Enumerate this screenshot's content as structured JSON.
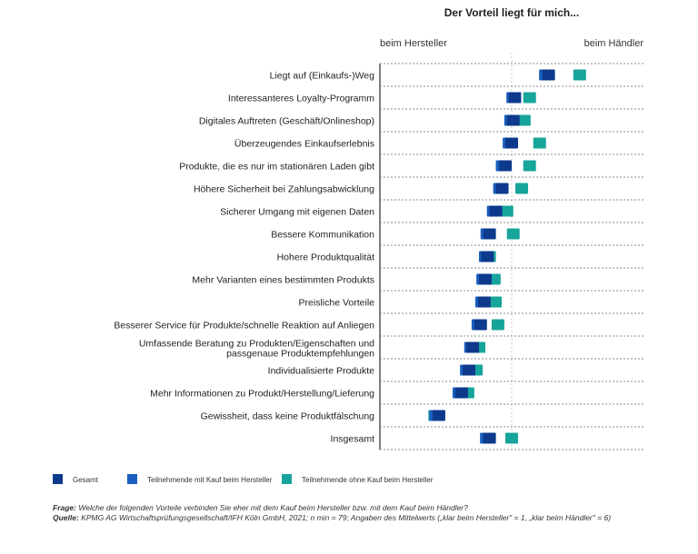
{
  "chart_data": {
    "type": "scatter",
    "title": "Der Vorteil liegt für mich...",
    "axis_left_label": "beim Hersteller",
    "axis_right_label": "beim Händler",
    "xlim": [
      1,
      6
    ],
    "midpoint": 3.5,
    "grid": true,
    "legend_position": "bottom",
    "categories": [
      "Liegt auf (Einkaufs-)Weg",
      "Interessanteres Loyalty-Programm",
      "Digitales Auftreten (Geschäft/Onlineshop)",
      "Überzeugendes Einkaufserlebnis",
      "Produkte, die es nur im stationären Laden gibt",
      "Höhere Sicherheit bei Zahlungsabwicklung",
      "Sicherer Umgang mit eigenen Daten",
      "Bessere Kommunikation",
      "Hohere Produktqualität",
      "Mehr Varianten eines bestimmten Produkts",
      "Preisliche Vorteile",
      "Besserer Service für Produkte/schnelle Reaktion auf Anliegen",
      "Umfassende Beratung zu Produkten/Eigenschaften und passgenaue Produktempfehlungen",
      "Individualisierte Produkte",
      "Mehr Informationen zu Produkt/Herstellung/Lieferung",
      "Gewissheit, dass keine Produktfälschung",
      "Insgesamt"
    ],
    "series": [
      {
        "name": "Gesamt",
        "color": "#0d3a8c",
        "values": [
          4.2,
          3.56,
          3.53,
          3.5,
          3.38,
          3.32,
          3.2,
          3.08,
          3.04,
          3.0,
          2.98,
          2.91,
          2.76,
          2.69,
          2.55,
          2.12,
          3.08
        ]
      },
      {
        "name": "Teilnehmende mit Kauf beim Hersteller",
        "color": "#1a5fbf",
        "values": [
          4.14,
          3.52,
          3.48,
          3.45,
          3.32,
          3.27,
          3.15,
          3.03,
          3.0,
          2.95,
          2.93,
          2.86,
          2.72,
          2.64,
          2.5,
          2.06,
          3.02
        ]
      },
      {
        "name": "Teilnehmende ohne Kauf beim Hersteller",
        "color": "#17a49a",
        "values": [
          4.79,
          3.84,
          3.74,
          4.03,
          3.84,
          3.69,
          3.41,
          3.53,
          3.08,
          3.17,
          3.19,
          3.24,
          2.88,
          2.83,
          2.67,
          2.04,
          3.5
        ]
      }
    ]
  },
  "footnote": {
    "frage_label": "Frage:",
    "frage_text": " Welche der folgenden Vorteile verbinden Sie eher mit dem Kauf beim Hersteller bzw. mit dem Kauf beim Händler?",
    "quelle_label": "Quelle:",
    "quelle_text": " KPMG AG Wirtschaftsprüfungsgesellschaft/IFH Köln GmbH, 2021; n min = 79; Angaben des Mittelwerts („klar beim Hersteller\" = 1, „klar beim Händler\" = 6)"
  }
}
